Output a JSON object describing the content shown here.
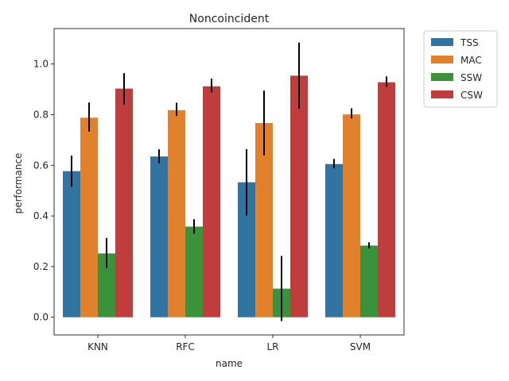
{
  "chart_data": {
    "type": "bar",
    "title": "Noncoincident",
    "xlabel": "name",
    "ylabel": "performance",
    "categories": [
      "KNN",
      "RFC",
      "LR",
      "SVM"
    ],
    "ylim": [
      -0.07,
      1.14
    ],
    "yticks": [
      "0.0",
      "0.2",
      "0.4",
      "0.6",
      "0.8",
      "1.0"
    ],
    "legend_position": "outside-top-right",
    "grid": false,
    "series": [
      {
        "name": "TSS",
        "color": "#3274a1",
        "values": [
          0.577,
          0.635,
          0.533,
          0.605
        ],
        "err_low": [
          0.515,
          0.608,
          0.402,
          0.588
        ],
        "err_high": [
          0.638,
          0.663,
          0.664,
          0.625
        ]
      },
      {
        "name": "MAC",
        "color": "#e1812c",
        "values": [
          0.788,
          0.818,
          0.767,
          0.801
        ],
        "err_low": [
          0.733,
          0.795,
          0.639,
          0.785
        ],
        "err_high": [
          0.848,
          0.847,
          0.895,
          0.825
        ]
      },
      {
        "name": "SSW",
        "color": "#3a923a",
        "values": [
          0.252,
          0.358,
          0.113,
          0.283
        ],
        "err_low": [
          0.193,
          0.33,
          -0.015,
          0.272
        ],
        "err_high": [
          0.313,
          0.387,
          0.242,
          0.296
        ]
      },
      {
        "name": "CSW",
        "color": "#c03d3e",
        "values": [
          0.903,
          0.912,
          0.954,
          0.928
        ],
        "err_low": [
          0.84,
          0.888,
          0.823,
          0.91
        ],
        "err_high": [
          0.964,
          0.942,
          1.085,
          0.951
        ]
      }
    ]
  }
}
